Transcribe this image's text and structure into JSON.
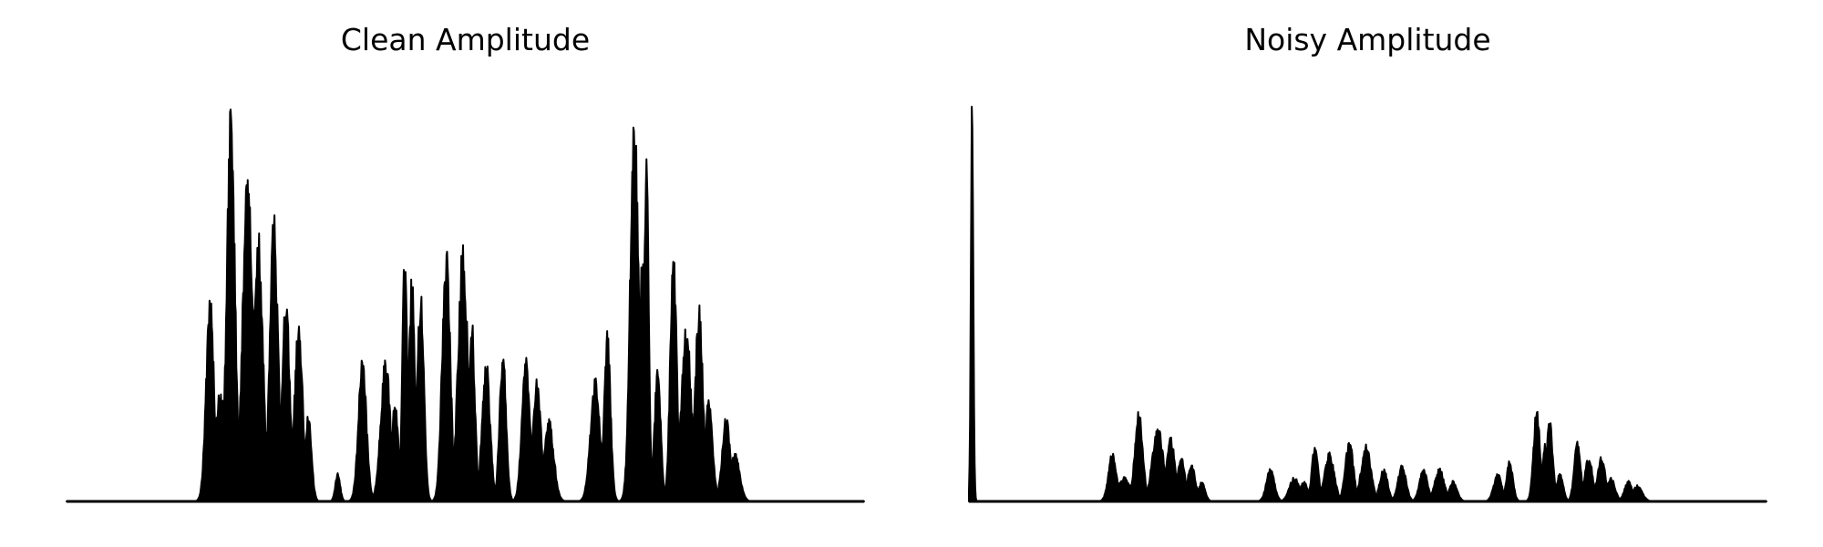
{
  "chart_data": [
    {
      "type": "area",
      "title": "Clean Amplitude",
      "xlabel": "",
      "ylabel": "",
      "ylim": [
        0,
        1
      ],
      "x_range": [
        0,
        1
      ],
      "grid": false,
      "axes_visible": false,
      "peaks": [
        [
          0.18,
          0.5,
          0.005
        ],
        [
          0.193,
          0.27,
          0.008
        ],
        [
          0.206,
          0.98,
          0.005
        ],
        [
          0.227,
          0.82,
          0.006
        ],
        [
          0.24,
          0.68,
          0.006
        ],
        [
          0.26,
          0.71,
          0.005
        ],
        [
          0.275,
          0.5,
          0.005
        ],
        [
          0.291,
          0.45,
          0.005
        ],
        [
          0.303,
          0.22,
          0.004
        ],
        [
          0.34,
          0.07,
          0.003
        ],
        [
          0.371,
          0.35,
          0.005
        ],
        [
          0.4,
          0.35,
          0.006
        ],
        [
          0.412,
          0.25,
          0.004
        ],
        [
          0.424,
          0.62,
          0.003
        ],
        [
          0.433,
          0.55,
          0.004
        ],
        [
          0.444,
          0.52,
          0.004
        ],
        [
          0.476,
          0.64,
          0.005
        ],
        [
          0.497,
          0.63,
          0.006
        ],
        [
          0.508,
          0.45,
          0.004
        ],
        [
          0.526,
          0.35,
          0.005
        ],
        [
          0.547,
          0.38,
          0.004
        ],
        [
          0.576,
          0.37,
          0.005
        ],
        [
          0.59,
          0.3,
          0.005
        ],
        [
          0.605,
          0.2,
          0.006
        ],
        [
          0.663,
          0.3,
          0.006
        ],
        [
          0.678,
          0.42,
          0.004
        ],
        [
          0.712,
          1.0,
          0.005
        ],
        [
          0.722,
          0.6,
          0.004
        ],
        [
          0.727,
          0.87,
          0.003
        ],
        [
          0.741,
          0.32,
          0.004
        ],
        [
          0.761,
          0.64,
          0.004
        ],
        [
          0.777,
          0.45,
          0.006
        ],
        [
          0.793,
          0.48,
          0.005
        ],
        [
          0.805,
          0.25,
          0.005
        ],
        [
          0.827,
          0.21,
          0.005
        ],
        [
          0.838,
          0.12,
          0.006
        ]
      ]
    },
    {
      "type": "area",
      "title": "Noisy Amplitude",
      "xlabel": "",
      "ylabel": "",
      "ylim": [
        0,
        1
      ],
      "x_range": [
        0,
        1
      ],
      "grid": false,
      "axes_visible": false,
      "peaks": [
        [
          0.004,
          1.0,
          0.0015
        ],
        [
          0.18,
          0.12,
          0.005
        ],
        [
          0.195,
          0.06,
          0.008
        ],
        [
          0.213,
          0.22,
          0.005
        ],
        [
          0.237,
          0.18,
          0.007
        ],
        [
          0.253,
          0.16,
          0.005
        ],
        [
          0.266,
          0.11,
          0.005
        ],
        [
          0.279,
          0.09,
          0.005
        ],
        [
          0.292,
          0.05,
          0.004
        ],
        [
          0.378,
          0.08,
          0.005
        ],
        [
          0.408,
          0.06,
          0.006
        ],
        [
          0.42,
          0.05,
          0.005
        ],
        [
          0.434,
          0.14,
          0.004
        ],
        [
          0.452,
          0.12,
          0.006
        ],
        [
          0.477,
          0.15,
          0.005
        ],
        [
          0.498,
          0.14,
          0.006
        ],
        [
          0.52,
          0.08,
          0.005
        ],
        [
          0.543,
          0.09,
          0.005
        ],
        [
          0.57,
          0.08,
          0.005
        ],
        [
          0.59,
          0.08,
          0.006
        ],
        [
          0.607,
          0.05,
          0.005
        ],
        [
          0.663,
          0.07,
          0.005
        ],
        [
          0.678,
          0.1,
          0.004
        ],
        [
          0.712,
          0.23,
          0.004
        ],
        [
          0.722,
          0.14,
          0.003
        ],
        [
          0.728,
          0.2,
          0.004
        ],
        [
          0.741,
          0.07,
          0.004
        ],
        [
          0.763,
          0.15,
          0.004
        ],
        [
          0.777,
          0.11,
          0.005
        ],
        [
          0.793,
          0.11,
          0.005
        ],
        [
          0.805,
          0.06,
          0.005
        ],
        [
          0.827,
          0.05,
          0.005
        ],
        [
          0.838,
          0.04,
          0.006
        ]
      ]
    }
  ]
}
